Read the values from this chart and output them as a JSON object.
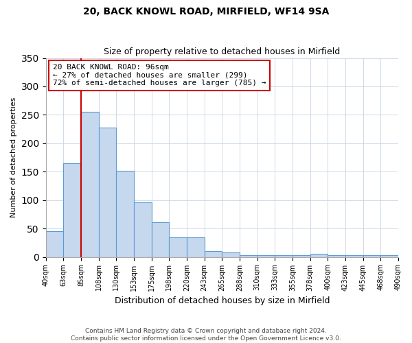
{
  "title1": "20, BACK KNOWL ROAD, MIRFIELD, WF14 9SA",
  "title2": "Size of property relative to detached houses in Mirfield",
  "xlabel": "Distribution of detached houses by size in Mirfield",
  "ylabel": "Number of detached properties",
  "tick_labels": [
    "40sqm",
    "63sqm",
    "85sqm",
    "108sqm",
    "130sqm",
    "153sqm",
    "175sqm",
    "198sqm",
    "220sqm",
    "243sqm",
    "265sqm",
    "288sqm",
    "310sqm",
    "333sqm",
    "355sqm",
    "378sqm",
    "400sqm",
    "423sqm",
    "445sqm",
    "468sqm",
    "490sqm"
  ],
  "bar_values": [
    45,
    165,
    255,
    228,
    152,
    96,
    61,
    34,
    34,
    10,
    8,
    3,
    3,
    3,
    3,
    5,
    3,
    3,
    3,
    3
  ],
  "bar_color": "#c5d8ed",
  "bar_edge_color": "#5b9bd5",
  "ylim": [
    0,
    350
  ],
  "yticks": [
    0,
    50,
    100,
    150,
    200,
    250,
    300,
    350
  ],
  "vline_pos": 2.0,
  "annotation_title": "20 BACK KNOWL ROAD: 96sqm",
  "annotation_line1": "← 27% of detached houses are smaller (299)",
  "annotation_line2": "72% of semi-detached houses are larger (785) →",
  "annotation_box_color": "#ffffff",
  "annotation_box_edge_color": "#cc0000",
  "footer1": "Contains HM Land Registry data © Crown copyright and database right 2024.",
  "footer2": "Contains public sector information licensed under the Open Government Licence v3.0."
}
